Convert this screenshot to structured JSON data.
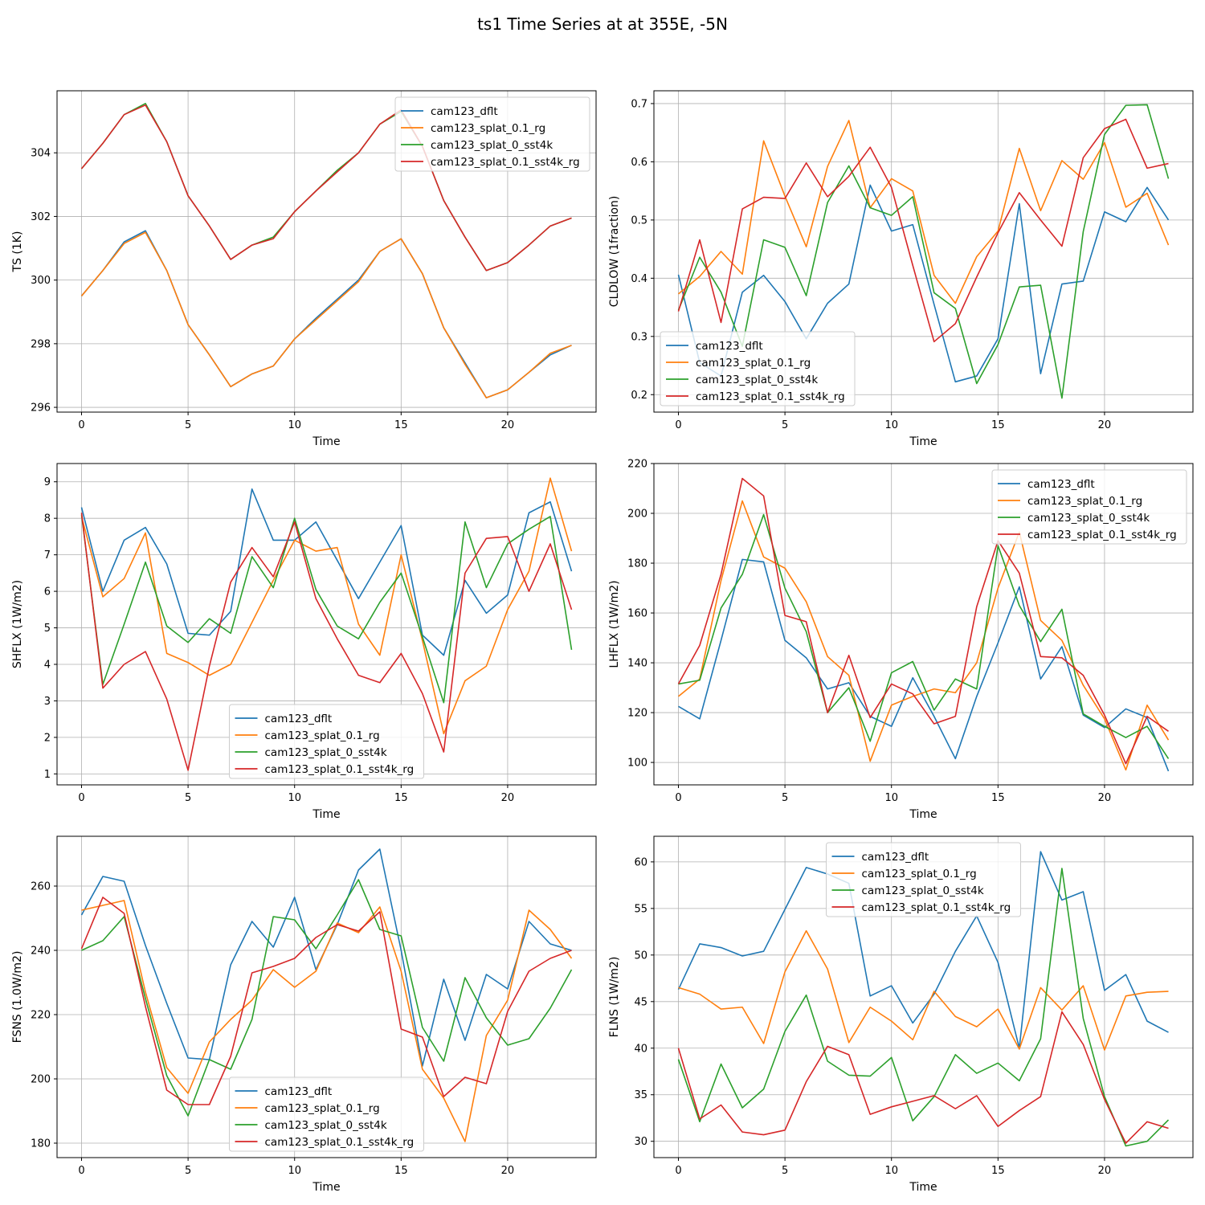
{
  "figure_title": "ts1 Time Series at at 355E, -5N",
  "colors": {
    "cam123_dflt": "#1f77b4",
    "cam123_splat_0.1_rg": "#ff7f0e",
    "cam123_splat_0_sst4k": "#2ca02c",
    "cam123_splat_0.1_sst4k_rg": "#d62728"
  },
  "chart_data": [
    {
      "type": "line",
      "title": "",
      "xlabel": "Time",
      "ylabel": "TS (1K)",
      "xlim": [
        -1.15,
        24.15
      ],
      "ylim": [
        295.85,
        305.95
      ],
      "xticks": [
        0,
        5,
        10,
        15,
        20
      ],
      "yticks": [
        296,
        298,
        300,
        302,
        304
      ],
      "grid": true,
      "legend_loc": "top-right",
      "x": [
        0,
        1,
        2,
        3,
        4,
        5,
        6,
        7,
        8,
        9,
        10,
        11,
        12,
        13,
        14,
        15,
        16,
        17,
        18,
        19,
        20,
        21,
        22,
        23
      ],
      "series": [
        {
          "name": "cam123_dflt",
          "values": [
            299.5,
            300.3,
            301.2,
            301.55,
            300.3,
            298.6,
            297.65,
            296.65,
            297.05,
            297.3,
            298.15,
            298.8,
            299.4,
            300.0,
            300.9,
            301.3,
            300.2,
            298.5,
            297.4,
            296.3,
            296.55,
            297.1,
            297.65,
            297.95
          ]
        },
        {
          "name": "cam123_splat_0.1_rg",
          "values": [
            299.5,
            300.3,
            301.15,
            301.5,
            300.3,
            298.6,
            297.65,
            296.65,
            297.05,
            297.3,
            298.15,
            298.75,
            299.35,
            299.95,
            300.9,
            301.3,
            300.2,
            298.5,
            297.35,
            296.3,
            296.55,
            297.1,
            297.7,
            297.95
          ]
        },
        {
          "name": "cam123_splat_0_sst4k",
          "values": [
            303.5,
            304.3,
            305.2,
            305.55,
            304.35,
            302.65,
            301.7,
            300.65,
            301.1,
            301.35,
            302.15,
            302.8,
            303.45,
            304.0,
            304.9,
            305.3,
            304.2,
            302.5,
            301.35,
            300.3,
            300.55,
            301.1,
            301.7,
            301.95
          ]
        },
        {
          "name": "cam123_splat_0.1_sst4k_rg",
          "values": [
            303.5,
            304.3,
            305.2,
            305.5,
            304.35,
            302.65,
            301.7,
            300.65,
            301.1,
            301.3,
            302.15,
            302.8,
            303.4,
            304.0,
            304.9,
            305.35,
            304.2,
            302.5,
            301.35,
            300.3,
            300.55,
            301.1,
            301.7,
            301.95
          ]
        }
      ]
    },
    {
      "type": "line",
      "title": "",
      "xlabel": "Time",
      "ylabel": "CLDLOW (1fraction)",
      "xlim": [
        -1.15,
        24.15
      ],
      "ylim": [
        0.17,
        0.722
      ],
      "xticks": [
        0,
        5,
        10,
        15,
        20
      ],
      "yticks": [
        0.2,
        0.3,
        0.4,
        0.5,
        0.6,
        0.7
      ],
      "grid": true,
      "legend_loc": "bottom-left",
      "x": [
        0,
        1,
        2,
        3,
        4,
        5,
        6,
        7,
        8,
        9,
        10,
        11,
        12,
        13,
        14,
        15,
        16,
        17,
        18,
        19,
        20,
        21,
        22,
        23
      ],
      "series": [
        {
          "name": "cam123_dflt",
          "values": [
            0.406,
            0.255,
            0.232,
            0.376,
            0.405,
            0.36,
            0.296,
            0.357,
            0.39,
            0.56,
            0.481,
            0.492,
            0.355,
            0.222,
            0.232,
            0.296,
            0.528,
            0.236,
            0.39,
            0.395,
            0.514,
            0.497,
            0.556,
            0.5
          ]
        },
        {
          "name": "cam123_splat_0.1_rg",
          "values": [
            0.373,
            0.403,
            0.446,
            0.407,
            0.636,
            0.541,
            0.454,
            0.592,
            0.671,
            0.521,
            0.571,
            0.55,
            0.405,
            0.357,
            0.437,
            0.481,
            0.623,
            0.516,
            0.602,
            0.57,
            0.633,
            0.522,
            0.546,
            0.457
          ]
        },
        {
          "name": "cam123_splat_0_sst4k",
          "values": [
            0.345,
            0.436,
            0.376,
            0.283,
            0.466,
            0.453,
            0.37,
            0.53,
            0.593,
            0.521,
            0.508,
            0.54,
            0.375,
            0.348,
            0.219,
            0.286,
            0.385,
            0.388,
            0.194,
            0.48,
            0.647,
            0.697,
            0.698,
            0.571
          ]
        },
        {
          "name": "cam123_splat_0.1_sst4k_rg",
          "values": [
            0.343,
            0.466,
            0.324,
            0.519,
            0.539,
            0.537,
            0.598,
            0.54,
            0.575,
            0.625,
            0.556,
            0.422,
            0.291,
            0.322,
            0.402,
            0.478,
            0.547,
            0.5,
            0.455,
            0.607,
            0.657,
            0.673,
            0.589,
            0.597
          ]
        }
      ]
    },
    {
      "type": "line",
      "title": "",
      "xlabel": "Time",
      "ylabel": "SHFLX (1W/m2)",
      "xlim": [
        -1.15,
        24.15
      ],
      "ylim": [
        0.7,
        9.5
      ],
      "xticks": [
        0,
        5,
        10,
        15,
        20
      ],
      "yticks": [
        1,
        2,
        3,
        4,
        5,
        6,
        7,
        8,
        9
      ],
      "grid": true,
      "legend_loc": "bottom-center",
      "x": [
        0,
        1,
        2,
        3,
        4,
        5,
        6,
        7,
        8,
        9,
        10,
        11,
        12,
        13,
        14,
        15,
        16,
        17,
        18,
        19,
        20,
        21,
        22,
        23
      ],
      "series": [
        {
          "name": "cam123_dflt",
          "values": [
            8.3,
            6.0,
            7.4,
            7.75,
            6.75,
            4.85,
            4.8,
            5.45,
            8.8,
            7.4,
            7.4,
            7.9,
            6.85,
            5.8,
            6.8,
            7.8,
            4.8,
            4.25,
            6.3,
            5.4,
            5.9,
            8.15,
            8.45,
            6.55
          ]
        },
        {
          "name": "cam123_splat_0.1_rg",
          "values": [
            8.05,
            5.85,
            6.35,
            7.6,
            4.3,
            4.05,
            3.7,
            4.0,
            5.15,
            6.3,
            7.4,
            7.1,
            7.2,
            5.1,
            4.25,
            7.0,
            4.65,
            2.1,
            3.55,
            3.95,
            5.5,
            6.55,
            9.1,
            7.1
          ]
        },
        {
          "name": "cam123_splat_0_sst4k",
          "values": [
            8.1,
            3.45,
            5.1,
            6.8,
            5.05,
            4.6,
            5.25,
            4.85,
            6.95,
            6.1,
            8.0,
            6.05,
            5.05,
            4.7,
            5.7,
            6.5,
            4.75,
            2.95,
            7.9,
            6.1,
            7.3,
            7.7,
            8.05,
            4.4
          ]
        },
        {
          "name": "cam123_splat_0.1_sst4k_rg",
          "values": [
            8.15,
            3.35,
            4.0,
            4.35,
            3.05,
            1.1,
            3.95,
            6.25,
            7.2,
            6.4,
            7.9,
            5.8,
            4.7,
            3.7,
            3.5,
            4.3,
            3.2,
            1.6,
            6.5,
            7.45,
            7.5,
            6.0,
            7.3,
            5.5
          ]
        }
      ]
    },
    {
      "type": "line",
      "title": "",
      "xlabel": "Time",
      "ylabel": "LHFLX (1W/m2)",
      "xlim": [
        -1.15,
        24.15
      ],
      "ylim": [
        91.0,
        220.0
      ],
      "xticks": [
        0,
        5,
        10,
        15,
        20
      ],
      "yticks": [
        100,
        120,
        140,
        160,
        180,
        200,
        220
      ],
      "grid": true,
      "legend_loc": "top-right",
      "x": [
        0,
        1,
        2,
        3,
        4,
        5,
        6,
        7,
        8,
        9,
        10,
        11,
        12,
        13,
        14,
        15,
        16,
        17,
        18,
        19,
        20,
        21,
        22,
        23
      ],
      "series": [
        {
          "name": "cam123_dflt",
          "values": [
            122.5,
            117.5,
            149.0,
            181.5,
            180.5,
            149.0,
            142.0,
            129.5,
            132.0,
            118.5,
            114.5,
            134.0,
            118.5,
            101.5,
            126.5,
            148.0,
            170.5,
            133.5,
            146.5,
            119.0,
            114.0,
            121.5,
            118.0,
            96.5
          ]
        },
        {
          "name": "cam123_splat_0.1_rg",
          "values": [
            126.5,
            133.5,
            173.0,
            205.0,
            182.5,
            178.0,
            164.5,
            142.5,
            135.0,
            100.5,
            123.0,
            126.5,
            129.5,
            128.0,
            140.0,
            170.0,
            192.5,
            157.0,
            149.0,
            131.0,
            117.5,
            97.0,
            123.0,
            109.0
          ]
        },
        {
          "name": "cam123_splat_0_sst4k",
          "values": [
            131.5,
            133.0,
            162.0,
            175.5,
            199.5,
            170.0,
            152.5,
            120.0,
            130.0,
            108.5,
            136.0,
            140.5,
            121.0,
            133.5,
            129.5,
            187.0,
            163.0,
            148.5,
            161.5,
            119.5,
            114.5,
            110.0,
            114.5,
            101.5
          ]
        },
        {
          "name": "cam123_splat_0.1_sst4k_rg",
          "values": [
            131.5,
            147.0,
            175.5,
            214.0,
            207.0,
            159.0,
            156.5,
            120.0,
            143.0,
            118.0,
            131.5,
            127.5,
            115.5,
            118.5,
            162.5,
            189.0,
            176.0,
            142.5,
            142.0,
            135.0,
            119.0,
            99.5,
            118.5,
            112.5
          ]
        }
      ]
    },
    {
      "type": "line",
      "title": "",
      "xlabel": "Time",
      "ylabel": "FSNS (1.0W/m2)",
      "xlim": [
        -1.15,
        24.15
      ],
      "ylim": [
        175.5,
        275.5
      ],
      "xticks": [
        0,
        5,
        10,
        15,
        20
      ],
      "yticks": [
        180,
        200,
        220,
        240,
        260
      ],
      "grid": true,
      "legend_loc": "bottom-center",
      "x": [
        0,
        1,
        2,
        3,
        4,
        5,
        6,
        7,
        8,
        9,
        10,
        11,
        12,
        13,
        14,
        15,
        16,
        17,
        18,
        19,
        20,
        21,
        22,
        23
      ],
      "series": [
        {
          "name": "cam123_dflt",
          "values": [
            251.0,
            263.0,
            261.5,
            241.5,
            223.5,
            206.5,
            206.0,
            235.5,
            249.0,
            241.0,
            256.5,
            234.0,
            248.0,
            265.0,
            271.5,
            240.0,
            204.0,
            231.0,
            212.0,
            232.5,
            228.0,
            249.0,
            242.0,
            240.0
          ]
        },
        {
          "name": "cam123_splat_0.1_rg",
          "values": [
            252.5,
            254.0,
            255.5,
            227.0,
            203.5,
            195.5,
            211.5,
            218.5,
            224.5,
            234.0,
            228.5,
            233.5,
            248.5,
            245.5,
            253.5,
            233.5,
            203.0,
            194.0,
            180.5,
            213.5,
            224.5,
            252.5,
            246.5,
            237.5
          ]
        },
        {
          "name": "cam123_splat_0_sst4k",
          "values": [
            240.0,
            243.0,
            250.5,
            225.0,
            201.0,
            188.5,
            206.0,
            203.0,
            218.5,
            250.5,
            249.5,
            240.5,
            251.0,
            262.0,
            246.5,
            244.5,
            216.0,
            205.5,
            231.5,
            219.0,
            210.5,
            212.5,
            222.0,
            234.0
          ]
        },
        {
          "name": "cam123_splat_0.1_sst4k_rg",
          "values": [
            240.5,
            256.5,
            251.5,
            222.5,
            196.5,
            192.0,
            192.0,
            207.0,
            233.0,
            235.0,
            237.5,
            244.0,
            248.0,
            246.0,
            252.0,
            215.5,
            213.0,
            194.5,
            200.5,
            198.5,
            221.0,
            233.5,
            237.5,
            240.0
          ]
        }
      ]
    },
    {
      "type": "line",
      "title": "",
      "xlabel": "Time",
      "ylabel": "FLNS (1W/m2)",
      "xlim": [
        -1.15,
        24.15
      ],
      "ylim": [
        28.25,
        62.75
      ],
      "xticks": [
        0,
        5,
        10,
        15,
        20
      ],
      "yticks": [
        30,
        35,
        40,
        45,
        50,
        55,
        60
      ],
      "grid": true,
      "legend_loc": "top-center",
      "x": [
        0,
        1,
        2,
        3,
        4,
        5,
        6,
        7,
        8,
        9,
        10,
        11,
        12,
        13,
        14,
        15,
        16,
        17,
        18,
        19,
        20,
        21,
        22,
        23
      ],
      "series": [
        {
          "name": "cam123_dflt",
          "values": [
            46.3,
            51.2,
            50.8,
            49.9,
            50.4,
            54.9,
            59.4,
            58.7,
            57.7,
            45.6,
            46.7,
            42.7,
            45.8,
            50.4,
            54.2,
            49.2,
            40.0,
            61.1,
            55.9,
            56.8,
            46.2,
            47.9,
            42.9,
            41.7
          ]
        },
        {
          "name": "cam123_splat_0.1_rg",
          "values": [
            46.5,
            45.8,
            44.2,
            44.4,
            40.5,
            48.2,
            52.6,
            48.5,
            40.6,
            44.4,
            42.9,
            40.9,
            46.1,
            43.4,
            42.3,
            44.2,
            39.9,
            46.5,
            44.1,
            46.7,
            39.8,
            45.6,
            46.0,
            46.1
          ]
        },
        {
          "name": "cam123_splat_0_sst4k",
          "values": [
            38.8,
            32.1,
            38.3,
            33.6,
            35.6,
            41.8,
            45.7,
            38.6,
            37.1,
            37.0,
            39.0,
            32.2,
            34.8,
            39.3,
            37.3,
            38.4,
            36.5,
            41.0,
            59.3,
            43.2,
            34.8,
            29.5,
            30.0,
            32.3
          ]
        },
        {
          "name": "cam123_splat_0.1_sst4k_rg",
          "values": [
            40.0,
            32.4,
            33.9,
            31.0,
            30.7,
            31.2,
            36.4,
            40.2,
            39.3,
            32.9,
            33.7,
            34.3,
            34.9,
            33.5,
            34.9,
            31.6,
            33.3,
            34.8,
            43.9,
            40.4,
            34.5,
            29.8,
            32.1,
            31.4
          ]
        }
      ]
    }
  ]
}
